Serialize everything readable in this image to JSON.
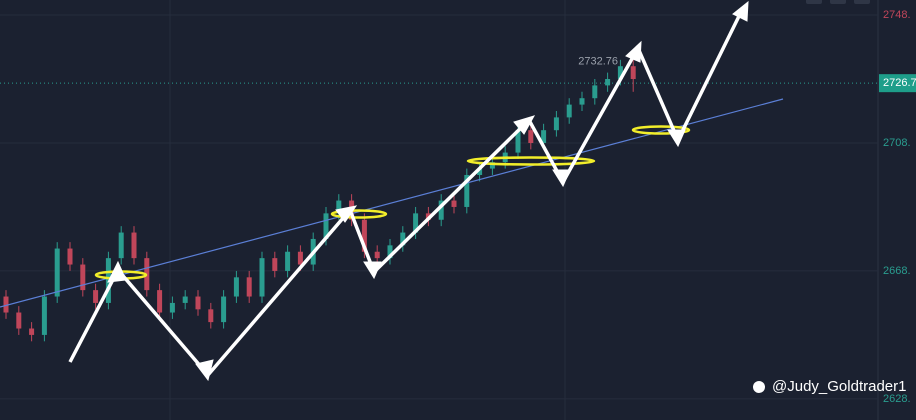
{
  "chart_data": {
    "type": "candlestick",
    "ohlc": [
      [
        2660,
        2662,
        2653,
        2655
      ],
      [
        2655,
        2657,
        2648,
        2650
      ],
      [
        2650,
        2652,
        2646,
        2648
      ],
      [
        2648,
        2662,
        2646,
        2660
      ],
      [
        2660,
        2677,
        2658,
        2675
      ],
      [
        2675,
        2677,
        2668,
        2670
      ],
      [
        2670,
        2672,
        2660,
        2662
      ],
      [
        2662,
        2664,
        2656,
        2658
      ],
      [
        2658,
        2674,
        2656,
        2672
      ],
      [
        2672,
        2682,
        2670,
        2680
      ],
      [
        2680,
        2682,
        2670,
        2672
      ],
      [
        2672,
        2674,
        2660,
        2662
      ],
      [
        2662,
        2664,
        2653,
        2655
      ],
      [
        2655,
        2660,
        2653,
        2658
      ],
      [
        2658,
        2662,
        2656,
        2660
      ],
      [
        2660,
        2662,
        2654,
        2656
      ],
      [
        2656,
        2658,
        2650,
        2652
      ],
      [
        2652,
        2662,
        2650,
        2660
      ],
      [
        2660,
        2668,
        2658,
        2666
      ],
      [
        2666,
        2668,
        2658,
        2660
      ],
      [
        2660,
        2674,
        2658,
        2672
      ],
      [
        2672,
        2674,
        2666,
        2668
      ],
      [
        2668,
        2676,
        2666,
        2674
      ],
      [
        2674,
        2676,
        2668,
        2670
      ],
      [
        2670,
        2680,
        2668,
        2678
      ],
      [
        2678,
        2688,
        2676,
        2686
      ],
      [
        2686,
        2692,
        2684,
        2690
      ],
      [
        2690,
        2692,
        2682,
        2684
      ],
      [
        2684,
        2686,
        2672,
        2674
      ],
      [
        2674,
        2676,
        2670,
        2672
      ],
      [
        2672,
        2678,
        2670,
        2676
      ],
      [
        2676,
        2682,
        2674,
        2680
      ],
      [
        2680,
        2688,
        2678,
        2686
      ],
      [
        2686,
        2688,
        2682,
        2684
      ],
      [
        2684,
        2692,
        2682,
        2690
      ],
      [
        2690,
        2692,
        2686,
        2688
      ],
      [
        2688,
        2700,
        2686,
        2698
      ],
      [
        2698,
        2702,
        2696,
        2700
      ],
      [
        2700,
        2704,
        2698,
        2702
      ],
      [
        2702,
        2707,
        2700,
        2705
      ],
      [
        2705,
        2714,
        2703,
        2712
      ],
      [
        2712,
        2714,
        2706,
        2708
      ],
      [
        2708,
        2714,
        2706,
        2712
      ],
      [
        2712,
        2718,
        2710,
        2716
      ],
      [
        2716,
        2722,
        2714,
        2720
      ],
      [
        2720,
        2724,
        2718,
        2722
      ],
      [
        2722,
        2728,
        2720,
        2726
      ],
      [
        2726,
        2730,
        2724,
        2728
      ],
      [
        2728,
        2734,
        2726,
        2732
      ],
      [
        2732,
        2734,
        2724,
        2728
      ]
    ],
    "up_color": "#2a9d8f",
    "down_color": "#c0465a",
    "ylim": [
      2621.4,
      2752.7
    ],
    "yticks": [
      {
        "value": 2748,
        "label": "2748."
      },
      {
        "value": 2708,
        "label": "2708."
      },
      {
        "value": 2668,
        "label": "2668."
      },
      {
        "value": 2628,
        "label": "2628."
      }
    ],
    "current_price": 2726.7,
    "price_note": 2732.76,
    "watermark": "@Judy_Goldtrader1"
  }
}
